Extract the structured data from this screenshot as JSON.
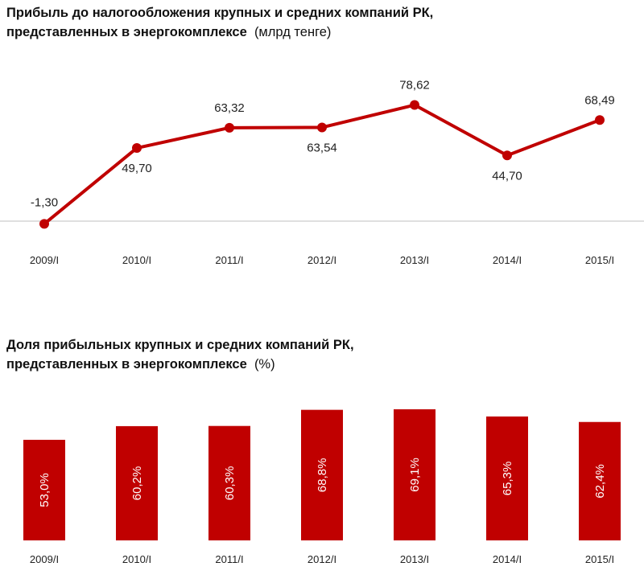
{
  "colors": {
    "series": "#c00000",
    "axis": "#bfbfbf",
    "text": "#222222"
  },
  "chart_data": [
    {
      "type": "line",
      "title_line1": "Прибыль до налогообложения  крупных и средних компаний РК,",
      "title_line2": "представленных в энергокомплексе",
      "unit": "(млрд тенге)",
      "categories": [
        "2009/I",
        "2010/I",
        "2011/I",
        "2012/I",
        "2013/I",
        "2014/I",
        "2015/I"
      ],
      "values": [
        -1.3,
        49.7,
        63.32,
        63.54,
        78.62,
        44.7,
        68.49
      ],
      "labels": [
        "-1,30",
        "49,70",
        "63,32",
        "63,54",
        "78,62",
        "44,70",
        "68,49"
      ],
      "grid": false,
      "legend": "none"
    },
    {
      "type": "bar",
      "title_line1": "Доля прибыльных  крупных  и средних компаний  РК,",
      "title_line2": "представленных  в энергокомплексе",
      "unit": "(%)",
      "categories": [
        "2009/I",
        "2010/I",
        "2011/I",
        "2012/I",
        "2013/I",
        "2014/I",
        "2015/I"
      ],
      "values": [
        53.0,
        60.2,
        60.3,
        68.8,
        69.1,
        65.3,
        62.4
      ],
      "labels": [
        "53,0%",
        "60,2%",
        "60,3%",
        "68,8%",
        "69,1%",
        "65,3%",
        "62,4%"
      ],
      "grid": false,
      "legend": "none"
    }
  ]
}
